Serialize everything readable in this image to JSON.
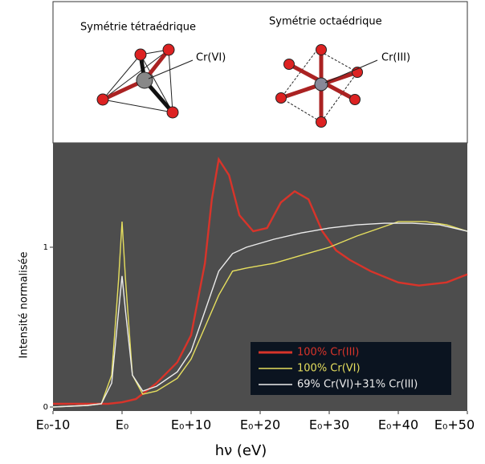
{
  "chart_data": {
    "type": "line",
    "annotations": [
      "Symétrie tétraédrique",
      "Symétrie octaédrique",
      "Cr(VI)",
      "Cr(III)"
    ],
    "xlabel": "hν (eV)",
    "ylabel": "Intensité normalisée",
    "xlim": [
      -10,
      50
    ],
    "ylim": [
      -0.025,
      1.653
    ],
    "xticks": [
      {
        "value": -10,
        "label": "E₀-10"
      },
      {
        "value": 0,
        "label": "E₀"
      },
      {
        "value": 10,
        "label": "E₀+10"
      },
      {
        "value": 20,
        "label": "E₀+20"
      },
      {
        "value": 30,
        "label": "E₀+30"
      },
      {
        "value": 40,
        "label": "E₀+40"
      },
      {
        "value": 50,
        "label": "E₀+50"
      }
    ],
    "yticks": [
      0,
      1
    ],
    "legend": "lower right",
    "series": [
      {
        "name": "100% Cr(III)",
        "color": "#d8342a",
        "x": [
          -10,
          -5,
          -2,
          0,
          2,
          5,
          8,
          10,
          12,
          13,
          14,
          15.5,
          17,
          19,
          21,
          23,
          25,
          27,
          29,
          31,
          33,
          36,
          40,
          43,
          47,
          50
        ],
        "values": [
          0.02,
          0.02,
          0.02,
          0.03,
          0.05,
          0.15,
          0.28,
          0.45,
          0.9,
          1.3,
          1.55,
          1.45,
          1.2,
          1.1,
          1.12,
          1.28,
          1.35,
          1.3,
          1.1,
          0.98,
          0.92,
          0.85,
          0.78,
          0.76,
          0.78,
          0.83
        ]
      },
      {
        "name": "100% Cr(VI)",
        "color": "#e6df5e",
        "x": [
          -10,
          -5,
          -3,
          -1.5,
          -0.5,
          0,
          0.5,
          1.5,
          3,
          5,
          8,
          10,
          12,
          14,
          16,
          18,
          22,
          26,
          30,
          34,
          38,
          40,
          44,
          47,
          50
        ],
        "values": [
          0.0,
          0.01,
          0.02,
          0.2,
          0.8,
          1.16,
          0.8,
          0.2,
          0.08,
          0.1,
          0.18,
          0.3,
          0.5,
          0.7,
          0.85,
          0.87,
          0.9,
          0.95,
          1.0,
          1.07,
          1.13,
          1.16,
          1.16,
          1.14,
          1.1
        ]
      },
      {
        "name": "69% Cr(VI)+31% Cr(III)",
        "color": "#ececec",
        "x": [
          -10,
          -5,
          -3,
          -1.5,
          -0.5,
          0,
          0.5,
          1.5,
          3,
          5,
          8,
          10,
          12,
          14,
          16,
          18,
          22,
          26,
          30,
          34,
          38,
          42,
          46,
          50
        ],
        "values": [
          0.0,
          0.01,
          0.02,
          0.15,
          0.6,
          0.82,
          0.6,
          0.2,
          0.1,
          0.13,
          0.22,
          0.35,
          0.6,
          0.85,
          0.96,
          1.0,
          1.05,
          1.09,
          1.12,
          1.14,
          1.15,
          1.15,
          1.14,
          1.1
        ]
      }
    ]
  }
}
